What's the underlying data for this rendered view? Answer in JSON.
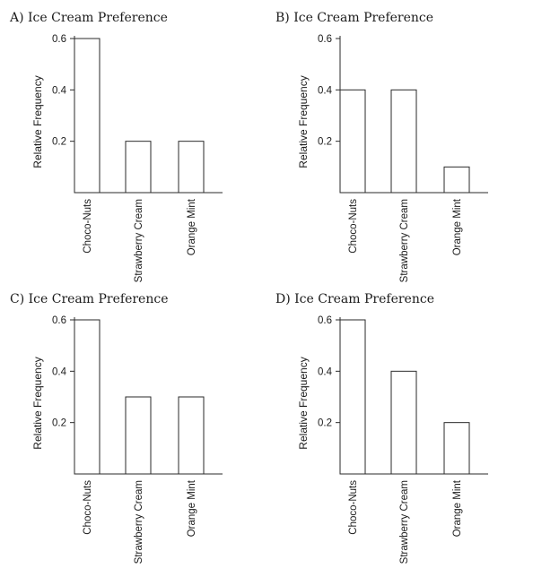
{
  "chart_data": [
    {
      "type": "bar",
      "title": "A) Ice Cream Preference",
      "ylabel": "Relative Frequency",
      "categories": [
        "Choco-Nuts",
        "Strawberry Cream",
        "Orange Mint"
      ],
      "values": [
        0.6,
        0.2,
        0.2
      ],
      "yticks": [
        "0.2",
        "0.4",
        "0.6"
      ],
      "ylim": [
        0,
        0.6
      ],
      "grid": false
    },
    {
      "type": "bar",
      "title": "B) Ice Cream Preference",
      "ylabel": "Relative Frequency",
      "categories": [
        "Choco-Nuts",
        "Strawberry Cream",
        "Orange Mint"
      ],
      "values": [
        0.4,
        0.4,
        0.1
      ],
      "yticks": [
        "0.2",
        "0.4",
        "0.6"
      ],
      "ylim": [
        0,
        0.6
      ],
      "grid": false
    },
    {
      "type": "bar",
      "title": "C) Ice Cream Preference",
      "ylabel": "Relative Frequency",
      "categories": [
        "Choco-Nuts",
        "Strawberry Cream",
        "Orange Mint"
      ],
      "values": [
        0.6,
        0.3,
        0.3
      ],
      "yticks": [
        "0.2",
        "0.4",
        "0.6"
      ],
      "ylim": [
        0,
        0.6
      ],
      "grid": false
    },
    {
      "type": "bar",
      "title": "D) Ice Cream Preference",
      "ylabel": "Relative Frequency",
      "categories": [
        "Choco-Nuts",
        "Strawberry Cream",
        "Orange Mint"
      ],
      "values": [
        0.6,
        0.4,
        0.2
      ],
      "yticks": [
        "0.2",
        "0.4",
        "0.6"
      ],
      "ylim": [
        0,
        0.6
      ],
      "grid": false
    }
  ]
}
